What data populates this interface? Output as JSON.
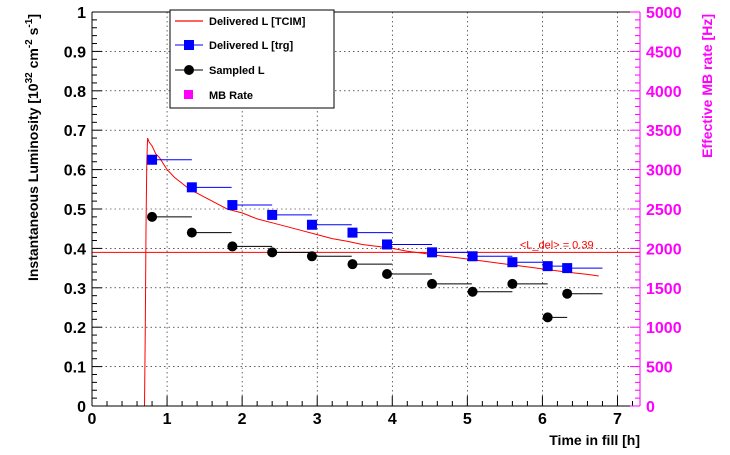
{
  "chart_data": {
    "type": "scatter",
    "xlabel": "Time in fill [h]",
    "ylabel": "Instantaneous Luminosity [10^32 cm^-2 s^-1]",
    "ylabel_parts": {
      "base": "Instantaneous Luminosity [10",
      "exp1": "32",
      "mid": " cm",
      "exp2": "-2",
      "mid2": " s",
      "exp3": "-1",
      "end": "]"
    },
    "y2label": "Effective MB rate [Hz]",
    "xlim": [
      0,
      7.3
    ],
    "ylim": [
      0,
      1
    ],
    "y2lim": [
      0,
      5000
    ],
    "grid": true,
    "legend_position": "top-left",
    "x_ticks": [
      "0",
      "1",
      "2",
      "3",
      "4",
      "5",
      "6",
      "7"
    ],
    "y_ticks": [
      "0",
      "0.1",
      "0.2",
      "0.3",
      "0.4",
      "0.5",
      "0.6",
      "0.7",
      "0.8",
      "0.9",
      "1"
    ],
    "y2_ticks": [
      "0",
      "500",
      "1000",
      "1500",
      "2000",
      "2500",
      "3000",
      "3500",
      "4000",
      "4500",
      "5000"
    ],
    "colors": {
      "tcim": "#ff0000",
      "trg": "#0000ff",
      "sampled": "#000000",
      "mb": "#ff00ff"
    },
    "annotation": {
      "text": "<L_del> = 0.39",
      "x": 5.7,
      "y": 0.4
    },
    "series": [
      {
        "name": "Delivered L [TCIM]",
        "style": "line",
        "x": [
          0.0,
          0.7,
          0.71,
          0.72,
          0.73,
          0.74,
          0.76,
          0.8,
          0.85,
          0.9,
          1.0,
          1.1,
          1.2,
          1.3,
          1.4,
          1.5,
          1.6,
          1.7,
          1.8,
          1.9,
          2.0,
          2.2,
          2.4,
          2.6,
          2.8,
          3.0,
          3.2,
          3.4,
          3.6,
          3.8,
          4.0,
          4.2,
          4.4,
          4.6,
          4.8,
          5.0,
          5.2,
          5.4,
          5.6,
          5.8,
          6.0,
          6.2,
          6.4,
          6.6,
          6.75
        ],
        "y": [
          0.0,
          0.0,
          0.2,
          0.45,
          0.62,
          0.68,
          0.67,
          0.66,
          0.64,
          0.63,
          0.6,
          0.58,
          0.565,
          0.55,
          0.54,
          0.53,
          0.52,
          0.51,
          0.5,
          0.495,
          0.49,
          0.475,
          0.465,
          0.455,
          0.445,
          0.435,
          0.425,
          0.418,
          0.41,
          0.405,
          0.4,
          0.393,
          0.388,
          0.382,
          0.378,
          0.373,
          0.368,
          0.363,
          0.358,
          0.353,
          0.348,
          0.343,
          0.338,
          0.334,
          0.33
        ]
      },
      {
        "name": "Delivered L [trg]",
        "style": "square-marker",
        "x": [
          0.8,
          1.33,
          1.87,
          2.4,
          2.93,
          3.47,
          3.93,
          4.53,
          5.07,
          5.6,
          6.07,
          6.33
        ],
        "y": [
          0.625,
          0.555,
          0.51,
          0.485,
          0.46,
          0.44,
          0.41,
          0.39,
          0.38,
          0.365,
          0.355,
          0.35
        ],
        "x_err_right": [
          0.53,
          0.53,
          0.53,
          0.53,
          0.53,
          0.53,
          0.6,
          0.53,
          0.53,
          0.47,
          0.26,
          0.47
        ]
      },
      {
        "name": "Sampled L",
        "style": "circle-marker",
        "x": [
          0.8,
          1.33,
          1.87,
          2.4,
          2.93,
          3.47,
          3.93,
          4.53,
          5.07,
          5.6,
          6.07,
          6.33
        ],
        "y": [
          0.48,
          0.44,
          0.405,
          0.39,
          0.38,
          0.36,
          0.335,
          0.31,
          0.29,
          0.31,
          0.225,
          0.285
        ],
        "x_err_right": [
          0.53,
          0.53,
          0.53,
          0.53,
          0.53,
          0.53,
          0.6,
          0.53,
          0.53,
          0.47,
          0.26,
          0.47
        ]
      },
      {
        "name": "MB Rate",
        "style": "square-marker",
        "x": [],
        "y": []
      }
    ],
    "average_line": {
      "y": 0.39
    }
  }
}
